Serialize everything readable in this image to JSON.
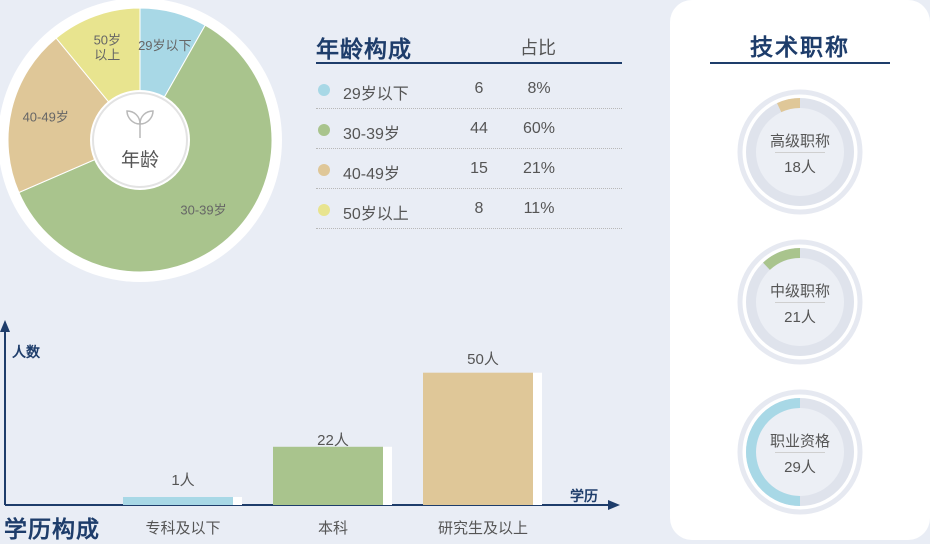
{
  "age": {
    "title": "年龄构成",
    "share_header": "占比",
    "center_label": "年龄",
    "rows": [
      {
        "label": "29岁以下",
        "count": "6",
        "pct": "8%",
        "color": "#a8d8e6"
      },
      {
        "label": "30-39岁",
        "count": "44",
        "pct": "60%",
        "color": "#a9c48d"
      },
      {
        "label": "40-49岁",
        "count": "15",
        "pct": "21%",
        "color": "#dfc798"
      },
      {
        "label": "50岁以上",
        "count": "8",
        "pct": "11%",
        "color": "#e8e48f"
      }
    ]
  },
  "tech": {
    "title": "技术职称",
    "items": [
      {
        "name": "高级职称",
        "value": "18人",
        "fraction": 0.07,
        "color": "#dfc798"
      },
      {
        "name": "中级职称",
        "value": "21人",
        "fraction": 0.12,
        "color": "#a9c48d"
      },
      {
        "name": "职业资格",
        "value": "29人",
        "fraction": 0.5,
        "color": "#a8d8e6"
      }
    ]
  },
  "education": {
    "title": "学历构成",
    "y_label": "人数",
    "x_label": "学历"
  },
  "chart_data": [
    {
      "type": "pie",
      "title": "年龄构成",
      "categories": [
        "29岁以下",
        "30-39岁",
        "40-49岁",
        "50岁以上"
      ],
      "values": [
        6,
        44,
        15,
        8
      ],
      "percentages": [
        8,
        60,
        21,
        11
      ],
      "slice_labels": [
        "29岁以下",
        "30-39岁",
        "40-49岁",
        "50岁以上"
      ],
      "colors": [
        "#a8d8e6",
        "#a9c48d",
        "#dfc798",
        "#e8e48f"
      ]
    },
    {
      "type": "bar",
      "title": "学历构成",
      "categories": [
        "专科及以下",
        "本科",
        "研究生及以上"
      ],
      "values": [
        1,
        22,
        50
      ],
      "value_labels": [
        "1人",
        "22人",
        "50人"
      ],
      "colors": [
        "#a8d8e6",
        "#a9c48d",
        "#dfc798"
      ],
      "xlabel": "学历",
      "ylabel": "人数",
      "ylim": [
        0,
        65
      ]
    }
  ]
}
